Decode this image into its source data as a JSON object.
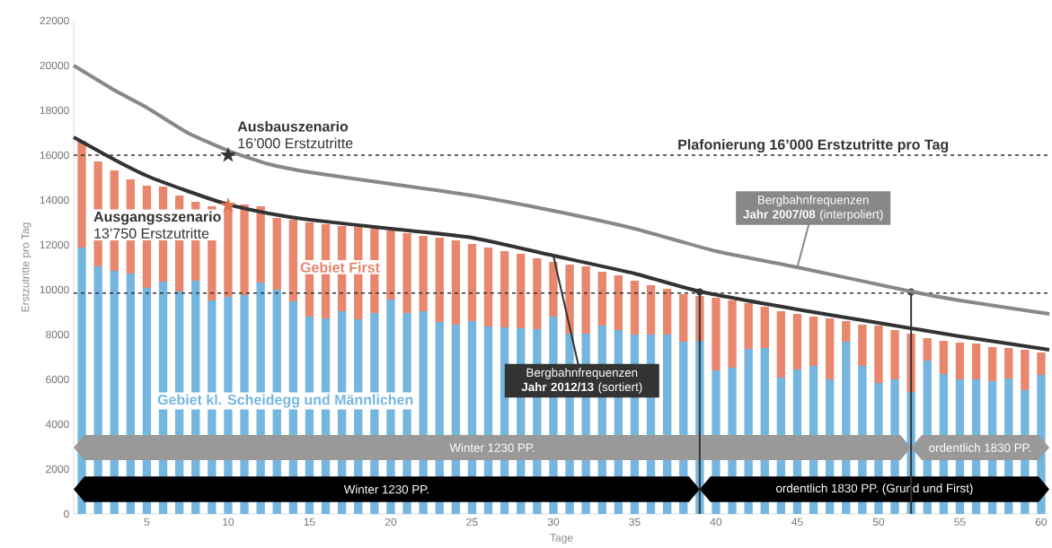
{
  "chart_data": {
    "type": "bar",
    "stacked": true,
    "xlabel": "Tage",
    "ylabel": "Erstzutritte pro Tag",
    "x": [
      1,
      2,
      3,
      4,
      5,
      6,
      7,
      8,
      9,
      10,
      11,
      12,
      13,
      14,
      15,
      16,
      17,
      18,
      19,
      20,
      21,
      22,
      23,
      24,
      25,
      26,
      27,
      28,
      29,
      30,
      31,
      32,
      33,
      34,
      35,
      36,
      37,
      38,
      39,
      40,
      41,
      42,
      43,
      44,
      45,
      46,
      47,
      48,
      49,
      50,
      51,
      52,
      53,
      54,
      55,
      56,
      57,
      58,
      59,
      60
    ],
    "xlim": [
      0.5,
      60.5
    ],
    "xticks": [
      5,
      10,
      15,
      20,
      25,
      30,
      35,
      40,
      45,
      50,
      55,
      60
    ],
    "ylim": [
      0,
      22000
    ],
    "yticks": [
      0,
      2000,
      4000,
      6000,
      8000,
      10000,
      12000,
      14000,
      16000,
      18000,
      20000,
      22000
    ],
    "series": [
      {
        "name": "Gebiet kl. Scheidegg und Männlichen",
        "color": "#74b6e0",
        "values": [
          11880,
          11040,
          10840,
          10720,
          10080,
          10360,
          9920,
          10400,
          9520,
          9680,
          9760,
          10320,
          10000,
          9480,
          8800,
          8720,
          9040,
          8680,
          8960,
          9560,
          8960,
          9040,
          8560,
          8440,
          8600,
          8360,
          8320,
          8280,
          8240,
          8800,
          8040,
          8040,
          8400,
          8200,
          8000,
          8000,
          8000,
          7680,
          7720,
          6400,
          6520,
          7360,
          7400,
          6080,
          6440,
          6600,
          6000,
          7680,
          6600,
          5840,
          6000,
          5440,
          6840,
          6240,
          6000,
          6000,
          5920,
          6040,
          5520,
          6200
        ]
      },
      {
        "name": "Gebiet First",
        "color": "#e8866e",
        "values": [
          4760,
          4680,
          4480,
          4200,
          4560,
          4240,
          4280,
          3520,
          4200,
          3920,
          4040,
          3400,
          3200,
          3640,
          4200,
          4200,
          3800,
          4120,
          3880,
          3080,
          3560,
          3360,
          3760,
          3760,
          3440,
          3520,
          3400,
          3320,
          3160,
          2440,
          3080,
          3000,
          2400,
          2440,
          2400,
          2200,
          2040,
          2120,
          2000,
          3240,
          3000,
          2040,
          1840,
          2960,
          2480,
          2200,
          2720,
          920,
          1840,
          2560,
          2200,
          2600,
          1000,
          1480,
          1640,
          1600,
          1520,
          1360,
          1800,
          1000
        ]
      },
      {
        "type": "line",
        "name": "Bergbahnfrequenzen **Jahr 2012/13** (sortiert)",
        "color": "#333333",
        "x": [
          0.5,
          3,
          5,
          7.5,
          10,
          12.5,
          15,
          20,
          25,
          30,
          35,
          39,
          45,
          50,
          55,
          60.5
        ],
        "values": [
          16800,
          15800,
          15080,
          14400,
          13800,
          13400,
          13120,
          12720,
          12320,
          11520,
          10720,
          9920,
          9120,
          8520,
          7920,
          7320
        ]
      },
      {
        "type": "line",
        "name": "Bergbahnfrequenzen **Jahr 2007/08** (interpoliert)",
        "color": "#888888",
        "x": [
          0.5,
          3,
          5,
          7.5,
          10,
          12.5,
          15,
          20,
          25,
          30,
          35,
          40,
          45,
          52,
          55,
          60.5
        ],
        "values": [
          20000,
          18900,
          18120,
          17000,
          16200,
          15600,
          15240,
          14720,
          14200,
          13520,
          12720,
          11720,
          11000,
          9920,
          9520,
          8920
        ]
      },
      {
        "type": "scatter",
        "marker": "star",
        "name": "Ausbauszenario",
        "color": "#333333",
        "x": [
          10
        ],
        "values": [
          16000
        ],
        "value_labels": [
          "16’000 Erstzutritte"
        ]
      },
      {
        "type": "scatter",
        "marker": "star",
        "name": "Ausgangsszenario",
        "color": "#e07050",
        "x": [
          10
        ],
        "values": [
          13750
        ],
        "value_labels": [
          "13’750 Erstzutritte"
        ]
      }
    ],
    "ref_lines": [
      {
        "axis": "y",
        "value": 16000,
        "label": "Plafonierung 16’000 Erstzutritte pro Tag",
        "color": "#333333",
        "line_style": "dashed"
      },
      {
        "axis": "y",
        "value": 9850,
        "color": "#333333",
        "line_style": "dashed"
      },
      {
        "axis": "x",
        "value": 39,
        "color": "#333333",
        "line_style": "solid"
      },
      {
        "axis": "x",
        "value": 52,
        "color": "#333333",
        "line_style": "solid"
      }
    ],
    "bands": [
      {
        "axis": "x",
        "from": 0.5,
        "to": 52,
        "label": "Winter 1230 PP.",
        "color": "#999999"
      },
      {
        "axis": "x",
        "from": 52,
        "to": 60.5,
        "label": "ordentlich 1830 PP.",
        "color": "#999999"
      },
      {
        "axis": "x",
        "from": 0.5,
        "to": 39,
        "label": "Winter 1230 PP.",
        "color": "#000000"
      },
      {
        "axis": "x",
        "from": 39,
        "to": 60.5,
        "label": "ordentlich 1830 PP. (Grund und First)",
        "color": "#000000"
      }
    ]
  }
}
